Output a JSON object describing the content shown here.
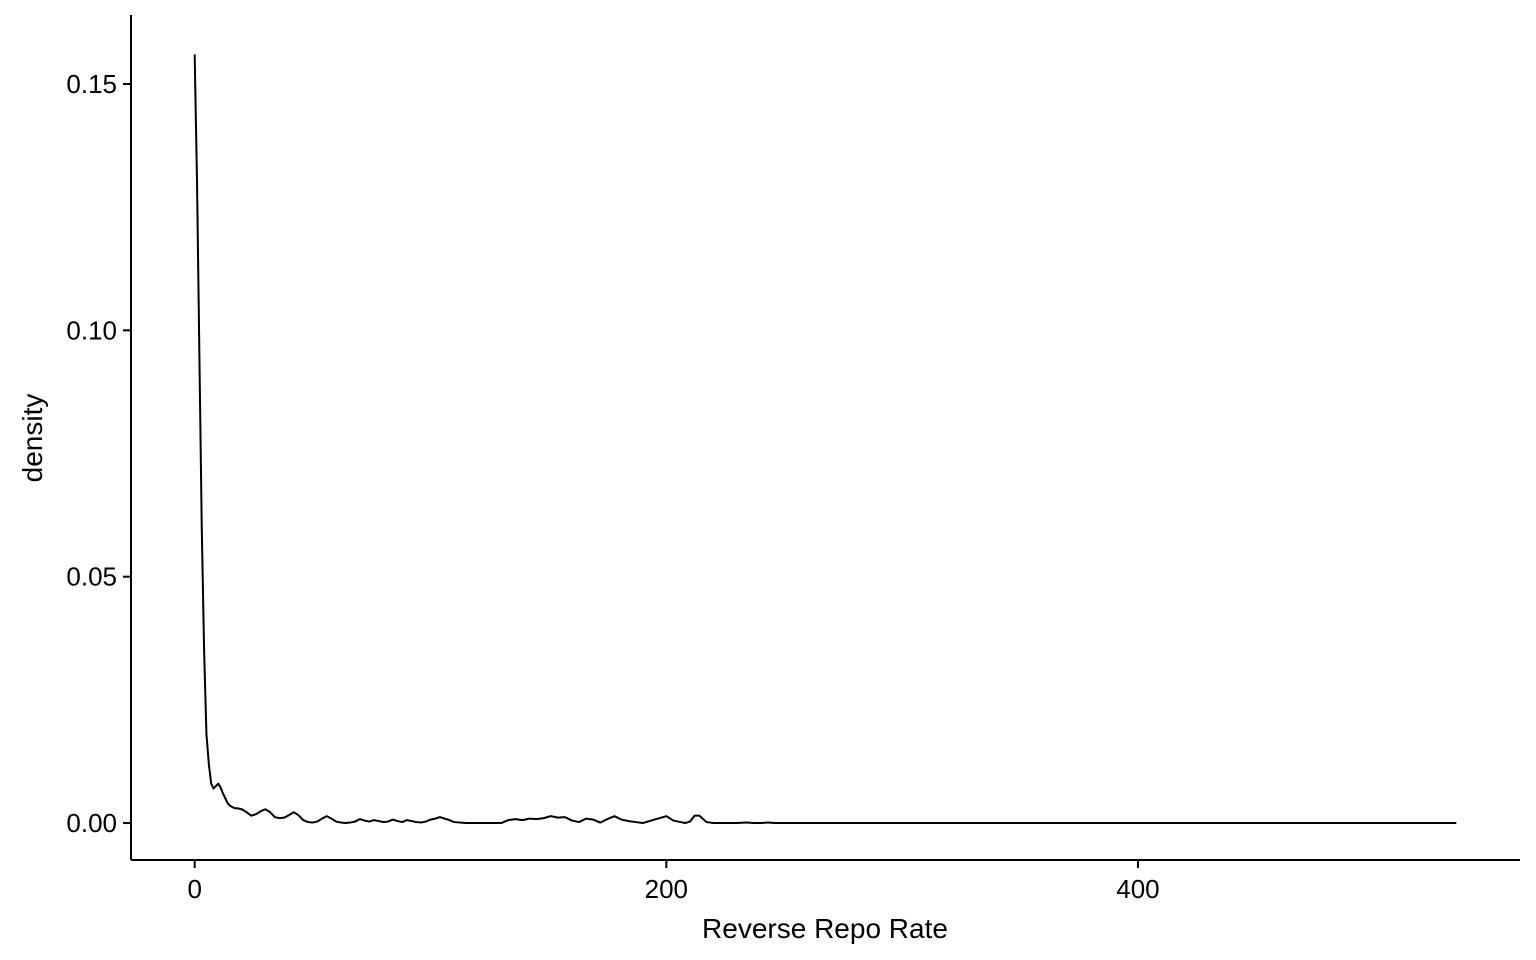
{
  "chart_data": {
    "type": "line",
    "title": "",
    "xlabel": "Reverse Repo Rate",
    "ylabel": "density",
    "xlim": [
      -27,
      562
    ],
    "ylim": [
      -0.0075,
      0.164
    ],
    "x_ticks": [
      0,
      200,
      400
    ],
    "y_ticks": [
      0.0,
      0.05,
      0.1,
      0.15
    ],
    "x_tick_labels": [
      "0",
      "200",
      "400"
    ],
    "y_tick_labels": [
      "0.00",
      "0.05",
      "0.10",
      "0.15"
    ],
    "grid": false,
    "legend": "none",
    "line_color": "#000000",
    "series": [
      {
        "x": [
          0,
          1,
          2,
          3,
          4,
          5,
          6,
          7,
          8,
          9,
          10,
          11,
          12,
          14,
          15,
          17,
          18,
          20,
          22,
          24,
          26,
          28,
          30,
          32,
          34,
          36,
          38,
          40,
          42,
          44,
          46,
          48,
          50,
          52,
          54,
          56,
          58,
          60,
          62,
          64,
          66,
          68,
          70,
          72,
          74,
          76,
          78,
          80,
          82,
          84,
          86,
          88,
          90,
          92,
          94,
          96,
          98,
          100,
          102,
          104,
          106,
          108,
          110,
          115,
          120,
          125,
          130,
          133,
          136,
          139,
          142,
          145,
          148,
          151,
          154,
          157,
          160,
          163,
          166,
          169,
          172,
          175,
          178,
          181,
          184,
          187,
          190,
          195,
          200,
          203,
          206,
          208,
          210,
          212,
          214,
          217,
          220,
          225,
          230,
          234,
          237,
          240,
          243,
          246,
          249,
          252,
          260,
          270,
          280,
          285,
          288,
          291,
          294,
          297,
          300,
          310,
          320,
          330,
          340,
          350,
          353,
          356,
          360,
          365,
          368,
          371,
          375,
          380,
          390,
          393,
          396,
          400,
          410,
          420,
          430,
          434,
          437,
          440,
          443,
          446,
          449,
          452,
          455,
          458,
          462,
          470,
          475,
          480,
          483,
          486,
          489,
          492,
          495,
          498,
          501,
          504,
          507,
          510,
          513,
          516,
          520,
          525,
          530,
          535
        ],
        "y": [
          0.156,
          0.13,
          0.095,
          0.06,
          0.035,
          0.018,
          0.012,
          0.008,
          0.007,
          0.0075,
          0.008,
          0.0072,
          0.006,
          0.004,
          0.0035,
          0.003,
          0.003,
          0.0028,
          0.0022,
          0.0015,
          0.0018,
          0.0024,
          0.0028,
          0.0022,
          0.0012,
          0.001,
          0.0011,
          0.0016,
          0.0022,
          0.0016,
          0.0006,
          0.0002,
          0.0001,
          0.0003,
          0.0009,
          0.0014,
          0.0009,
          0.0003,
          0.0001,
          0.0,
          0.0001,
          0.0003,
          0.0008,
          0.0005,
          0.0003,
          0.0006,
          0.0004,
          0.0002,
          0.0003,
          0.0007,
          0.0004,
          0.0002,
          0.0006,
          0.0004,
          0.0002,
          0.0001,
          0.0003,
          0.0007,
          0.0009,
          0.0012,
          0.0009,
          0.0006,
          0.0002,
          0.0,
          0.0,
          0.0,
          0.0,
          0.0006,
          0.0008,
          0.0006,
          0.0009,
          0.0008,
          0.001,
          0.0014,
          0.0011,
          0.0012,
          0.0005,
          0.0002,
          0.0009,
          0.0007,
          0.0001,
          0.0008,
          0.0014,
          0.0007,
          0.0004,
          0.0002,
          0.0,
          0.0007,
          0.0014,
          0.0005,
          0.0002,
          0.0,
          0.0003,
          0.0015,
          0.0015,
          0.0002,
          0.0,
          0.0,
          0.0,
          0.0001,
          0.0,
          0.0,
          0.0001,
          0.0,
          0.0,
          0.0,
          0.0,
          0.0,
          0.0,
          0.0,
          0.0,
          0.0,
          0.0,
          0.0,
          0.0,
          0.0,
          0.0,
          0.0,
          0.0,
          0.0,
          0.0,
          0.0,
          0.0,
          0.0,
          0.0,
          0.0,
          0.0,
          0.0,
          0.0,
          0.0,
          0.0,
          0.0,
          0.0,
          0.0,
          0.0,
          0.0,
          0.0,
          0.0,
          0.0,
          0.0,
          0.0,
          0.0,
          0.0,
          0.0,
          0.0,
          0.0,
          0.0,
          0.0,
          0.0,
          0.0,
          0.0,
          0.0,
          0.0,
          0.0,
          0.0,
          0.0,
          0.0,
          0.0,
          0.0,
          0.0,
          0.0,
          0.0,
          0.0,
          0.0
        ]
      }
    ]
  }
}
